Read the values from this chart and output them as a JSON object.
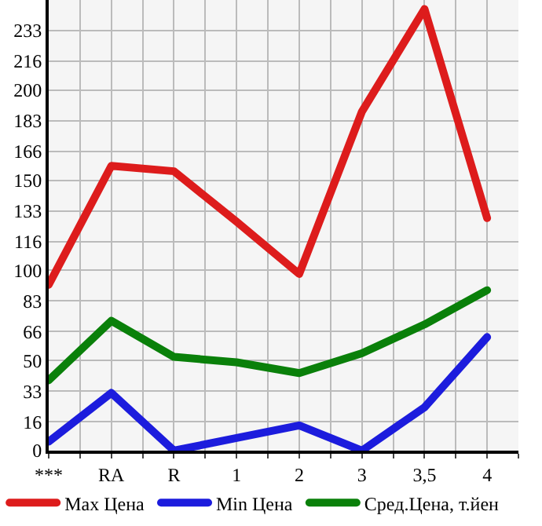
{
  "chart_data": {
    "type": "line",
    "categories": [
      "***",
      "RA",
      "R",
      "1",
      "2",
      "3",
      "3,5",
      "4"
    ],
    "series": [
      {
        "name": "Max Цена",
        "color": "#dd1c1c",
        "values": [
          92,
          158,
          155,
          127,
          98,
          188,
          245,
          129
        ]
      },
      {
        "name": "Min Цена",
        "color": "#1c1cdd",
        "values": [
          5,
          32,
          0,
          7,
          14,
          0,
          24,
          63
        ]
      },
      {
        "name": "Сред.Цена, т.йен",
        "color": "#0a800a",
        "values": [
          39,
          72,
          52,
          49,
          43,
          54,
          70,
          89
        ]
      }
    ],
    "ylim": [
      0,
      250
    ],
    "yticks": [
      0,
      16,
      33,
      50,
      66,
      83,
      100,
      116,
      133,
      150,
      166,
      183,
      200,
      216,
      233
    ],
    "grid": true,
    "legend": "bottom",
    "marker": "none",
    "line_style": "solid"
  }
}
